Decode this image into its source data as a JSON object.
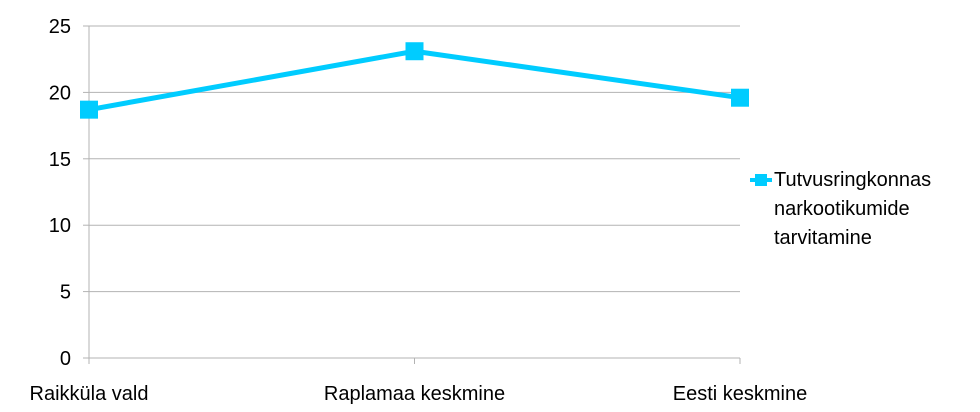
{
  "chart_data": {
    "type": "line",
    "title": "",
    "xlabel": "",
    "ylabel": "",
    "categories": [
      "Raikküla vald",
      "Raplamaa keskmine",
      "Eesti keskmine"
    ],
    "series": [
      {
        "name": "Tutvusringkonnas\nnarkootikumide\ntarvitamine",
        "values": [
          18.7,
          23.1,
          19.6
        ],
        "color": "#00ccff"
      }
    ],
    "ylim": [
      0,
      25
    ],
    "yticks": [
      0,
      5,
      10,
      15,
      20,
      25
    ],
    "grid": true,
    "legend_position": "right"
  }
}
